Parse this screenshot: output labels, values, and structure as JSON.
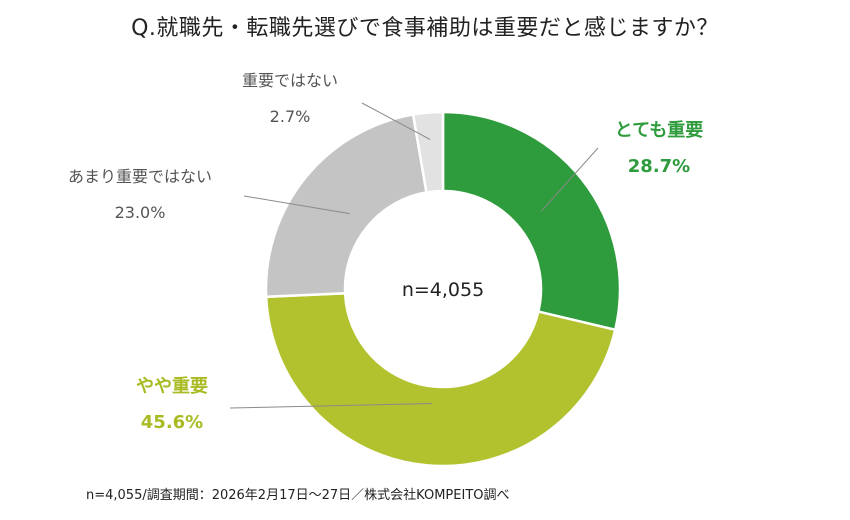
{
  "chart_data": {
    "type": "donut",
    "title": "Q.就職先・転職先選びで食事補助は重要だと感じますか？",
    "center_label": "n=4,055",
    "slices": [
      {
        "label": "とても重要",
        "value": 28.7,
        "value_label": "28.7%",
        "color": "#2e9b3c",
        "label_color": "#2e9b3c"
      },
      {
        "label": "やや重要",
        "value": 45.6,
        "value_label": "45.6%",
        "color": "#b2c22f",
        "label_color": "#a9bb23"
      },
      {
        "label": "あまり重要ではない",
        "value": 23.0,
        "value_label": "23.0%",
        "color": "#c4c4c4",
        "label_color": "#555555"
      },
      {
        "label": "重要ではない",
        "value": 2.7,
        "value_label": "2.7%",
        "color": "#e2e2e2",
        "label_color": "#555555"
      }
    ]
  },
  "footnote": "n=4,055/調査期間：2026年2月17日〜27日／株式会社KOMPEITO調べ"
}
